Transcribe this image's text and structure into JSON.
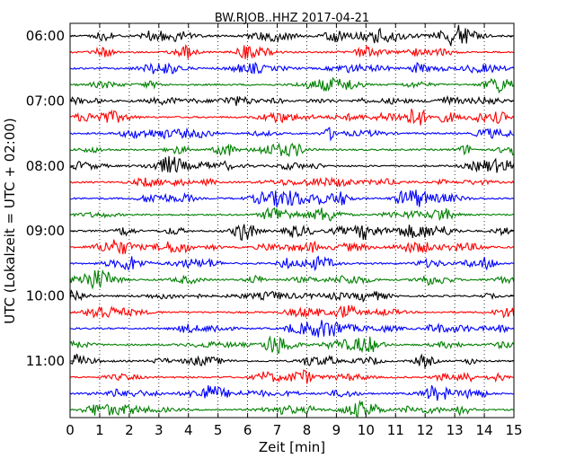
{
  "chart_data": {
    "type": "line",
    "title": "BW.RJOB..HHZ 2017-04-21",
    "xlabel": "Zeit  [min]",
    "ylabel": "UTC (Lokalzeit = UTC + 02:00)",
    "xlim": [
      0,
      15
    ],
    "x_ticks": [
      "0",
      "1",
      "2",
      "3",
      "4",
      "5",
      "6",
      "7",
      "8",
      "9",
      "10",
      "11",
      "12",
      "13",
      "14",
      "15"
    ],
    "y_ticks": [
      "06:00",
      "07:00",
      "08:00",
      "09:00",
      "10:00",
      "11:00"
    ],
    "grid": "vertical dotted",
    "trace_interval_minutes": 15,
    "first_trace": "06:00",
    "trace_count": 24,
    "trace_colors": [
      "#000000",
      "#ff0000",
      "#0000ff",
      "#008000"
    ]
  }
}
